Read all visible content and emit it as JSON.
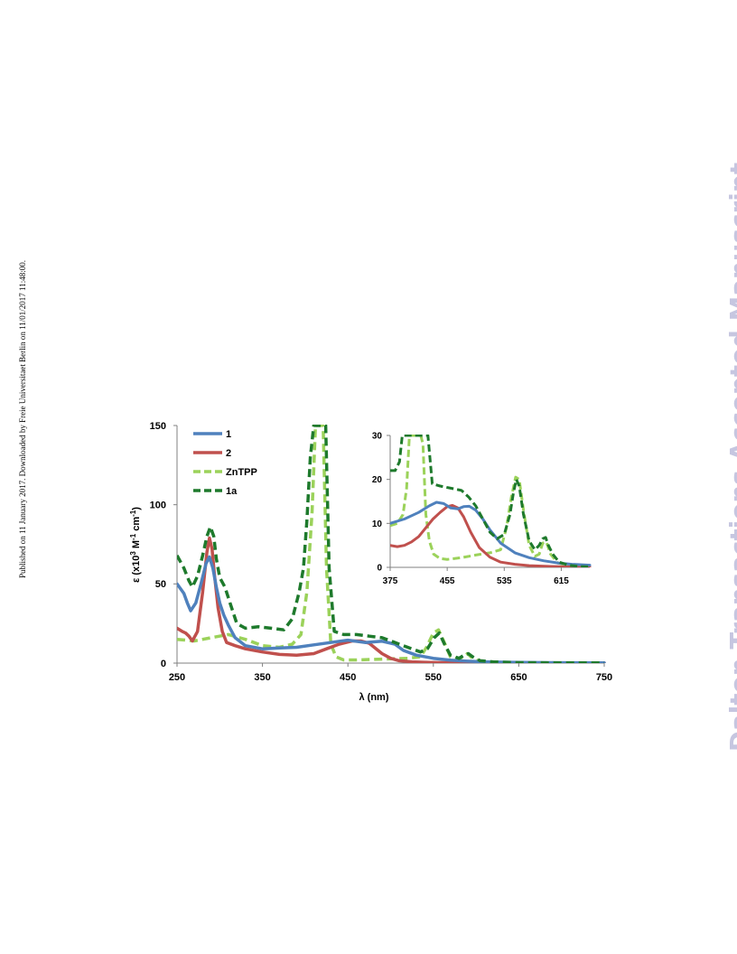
{
  "side_note": "Published on 11 January 2017. Downloaded by Freie Universitaet Berlin on 11/01/2017 11:48:00.",
  "watermark": "Dalton Transactions Accepted Manuscript",
  "colors": {
    "series_1": "#4f81bd",
    "series_2": "#c0504d",
    "series_ZnTPP": "#9bd25a",
    "series_1a": "#1e7a2c"
  },
  "chart_data": [
    {
      "id": "main",
      "type": "line",
      "xlabel": "λ (nm)",
      "ylabel": "ε (x10³ M⁻¹ cm⁻¹)",
      "ylabel_parts": {
        "a": "ε (x10",
        "b": "3",
        "c": " M",
        "d": "-1",
        "e": " cm",
        "f": "-1",
        "g": ")"
      },
      "xlim": [
        250,
        750
      ],
      "ylim": [
        0,
        150
      ],
      "xticks": [
        "250",
        "350",
        "450",
        "550",
        "650",
        "750"
      ],
      "yticks": [
        "0",
        "50",
        "100",
        "150"
      ],
      "grid": false,
      "legend_position": "top-left",
      "series": [
        {
          "name": "1",
          "style": "solid",
          "x": [
            250,
            258,
            262,
            266,
            272,
            278,
            284,
            288,
            292,
            296,
            300,
            305,
            310,
            318,
            330,
            350,
            370,
            390,
            410,
            430,
            450,
            470,
            490,
            505,
            515,
            530,
            550,
            570,
            590,
            610,
            640,
            680,
            720,
            750
          ],
          "y": [
            50,
            44,
            38,
            33,
            38,
            50,
            63,
            67,
            60,
            48,
            38,
            30,
            24,
            16,
            11,
            9,
            9.5,
            10,
            11.5,
            13,
            14.5,
            13,
            13.8,
            12,
            8,
            5,
            3,
            1.8,
            1.2,
            0.8,
            0.5,
            0.3,
            0.2,
            0.1
          ]
        },
        {
          "name": "2",
          "style": "solid",
          "x": [
            250,
            256,
            260,
            264,
            268,
            274,
            280,
            285,
            288,
            291,
            294,
            298,
            303,
            308,
            318,
            330,
            350,
            370,
            390,
            410,
            425,
            440,
            455,
            465,
            475,
            490,
            500,
            510,
            525,
            540,
            560,
            580,
            600,
            640,
            680,
            750
          ],
          "y": [
            22,
            20,
            19,
            17,
            14,
            20,
            45,
            70,
            79,
            72,
            55,
            35,
            20,
            13,
            11,
            9,
            7,
            5.5,
            5,
            6,
            9,
            12,
            14,
            14,
            12.5,
            6,
            3,
            1.5,
            0.8,
            0.5,
            0.3,
            0.2,
            0.1,
            0.1,
            0.1,
            0.1
          ]
        },
        {
          "name": "ZnTPP",
          "style": "dashed",
          "x": [
            250,
            270,
            290,
            310,
            330,
            350,
            370,
            385,
            395,
            402,
            408,
            412,
            415,
            418,
            421,
            425,
            430,
            436,
            445,
            460,
            490,
            520,
            535,
            542,
            550,
            556,
            562,
            570,
            580,
            586,
            590,
            596,
            604,
            620,
            650,
            750
          ],
          "y": [
            15,
            14,
            16,
            18,
            15,
            11,
            10,
            12,
            18,
            45,
            95,
            150,
            150,
            150,
            150,
            60,
            12,
            4,
            2,
            2,
            2.5,
            3,
            4,
            10,
            19,
            21,
            14,
            4,
            2.5,
            4.5,
            6,
            3,
            1,
            0.5,
            0.2,
            0.1
          ]
        },
        {
          "name": "1a",
          "style": "dashed",
          "x": [
            250,
            258,
            264,
            268,
            274,
            280,
            285,
            289,
            293,
            296,
            300,
            306,
            312,
            320,
            330,
            345,
            360,
            375,
            385,
            393,
            398,
            402,
            406,
            410,
            414,
            420,
            424,
            428,
            434,
            445,
            460,
            475,
            490,
            505,
            520,
            535,
            543,
            551,
            557,
            563,
            570,
            580,
            586,
            591,
            596,
            605,
            620,
            650,
            700,
            750
          ],
          "y": [
            68,
            60,
            52,
            48,
            55,
            68,
            80,
            86,
            80,
            66,
            54,
            48,
            38,
            25,
            22,
            23,
            22,
            21,
            28,
            45,
            60,
            90,
            130,
            150,
            150,
            150,
            150,
            60,
            20,
            18,
            18,
            17,
            16,
            13,
            10,
            7,
            9,
            16,
            19,
            12,
            5,
            3,
            5,
            6,
            4,
            1.5,
            0.8,
            0.3,
            0.1,
            0.1
          ]
        }
      ]
    },
    {
      "id": "inset",
      "type": "line",
      "xlim": [
        375,
        655
      ],
      "ylim": [
        0,
        30
      ],
      "xticks": [
        "375",
        "455",
        "535",
        "615"
      ],
      "yticks": [
        "0",
        "10",
        "20",
        "30"
      ],
      "grid": false,
      "series": [
        {
          "name": "1",
          "style": "solid",
          "x": [
            375,
            395,
            415,
            430,
            440,
            450,
            460,
            470,
            478,
            486,
            495,
            505,
            515,
            530,
            550,
            570,
            590,
            610,
            630,
            655
          ],
          "y": [
            10,
            11,
            12.5,
            14,
            14.8,
            14.5,
            13.5,
            13.3,
            13.8,
            13.9,
            13,
            11,
            8.5,
            5.5,
            3.3,
            2.2,
            1.5,
            1,
            0.7,
            0.5
          ]
        },
        {
          "name": "2",
          "style": "solid",
          "x": [
            375,
            385,
            395,
            405,
            415,
            425,
            435,
            445,
            455,
            462,
            470,
            478,
            488,
            500,
            515,
            530,
            550,
            570,
            600,
            630,
            655
          ],
          "y": [
            5,
            4.7,
            5,
            5.8,
            7,
            9,
            11,
            12.5,
            13.8,
            14.1,
            13.5,
            11.5,
            8,
            4.5,
            2.3,
            1.2,
            0.7,
            0.4,
            0.2,
            0.1,
            0.1
          ]
        },
        {
          "name": "ZnTPP",
          "style": "dashed",
          "x": [
            375,
            385,
            393,
            398,
            402,
            406,
            410,
            414,
            418,
            421,
            425,
            430,
            436,
            445,
            455,
            475,
            495,
            515,
            530,
            538,
            545,
            551,
            556,
            562,
            570,
            578,
            584,
            589,
            594,
            600,
            610,
            625,
            640,
            655
          ],
          "y": [
            9.5,
            10,
            12,
            18,
            30,
            30,
            30,
            30,
            30,
            28,
            12,
            6,
            3,
            2,
            1.8,
            2.2,
            2.8,
            3.3,
            4,
            9,
            16,
            20.5,
            20,
            13,
            5,
            2.5,
            3,
            5.5,
            5.8,
            3,
            1,
            0.5,
            0.2,
            0.1
          ]
        },
        {
          "name": "1a",
          "style": "dashed",
          "x": [
            375,
            382,
            388,
            392,
            396,
            400,
            404,
            408,
            412,
            416,
            420,
            424,
            428,
            434,
            445,
            460,
            475,
            485,
            495,
            505,
            515,
            525,
            535,
            543,
            548,
            552,
            556,
            562,
            570,
            578,
            584,
            589,
            593,
            597,
            603,
            612,
            625,
            640,
            655
          ],
          "y": [
            22,
            22,
            24,
            30,
            30,
            30,
            30,
            30,
            30,
            30,
            30,
            30,
            30,
            19,
            18.5,
            18,
            17.5,
            16,
            14,
            11,
            8,
            6.5,
            7.5,
            12,
            17,
            20,
            18.5,
            12,
            6,
            4,
            5,
            6.5,
            6.8,
            5,
            3,
            1.2,
            0.5,
            0.2,
            0.1
          ]
        }
      ]
    }
  ]
}
